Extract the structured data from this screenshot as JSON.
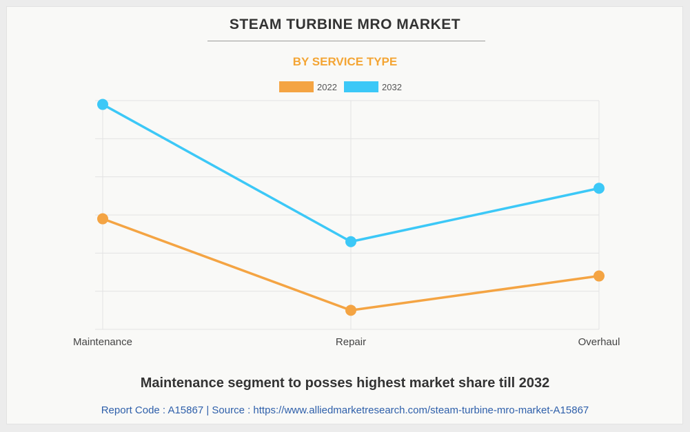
{
  "header": {
    "title": "STEAM TURBINE MRO MARKET",
    "subtitle": "BY SERVICE TYPE"
  },
  "footer": {
    "caption": "Maintenance segment to posses highest market share till 2032",
    "source": "Report Code : A15867  |  Source : https://www.alliedmarketresearch.com/steam-turbine-mro-market-A15867"
  },
  "colors": {
    "series_2022": "#f4a443",
    "series_2032": "#3cc8f7"
  },
  "chart_data": {
    "type": "line",
    "categories": [
      "Maintenance",
      "Repair",
      "Overhaul"
    ],
    "series": [
      {
        "name": "2022",
        "values": [
          29,
          5,
          14
        ]
      },
      {
        "name": "2032",
        "values": [
          59,
          23,
          37
        ]
      }
    ],
    "ylim": [
      0,
      60
    ],
    "grid": true,
    "y_tick_labels_shown": false,
    "legend_position": "top-center"
  }
}
